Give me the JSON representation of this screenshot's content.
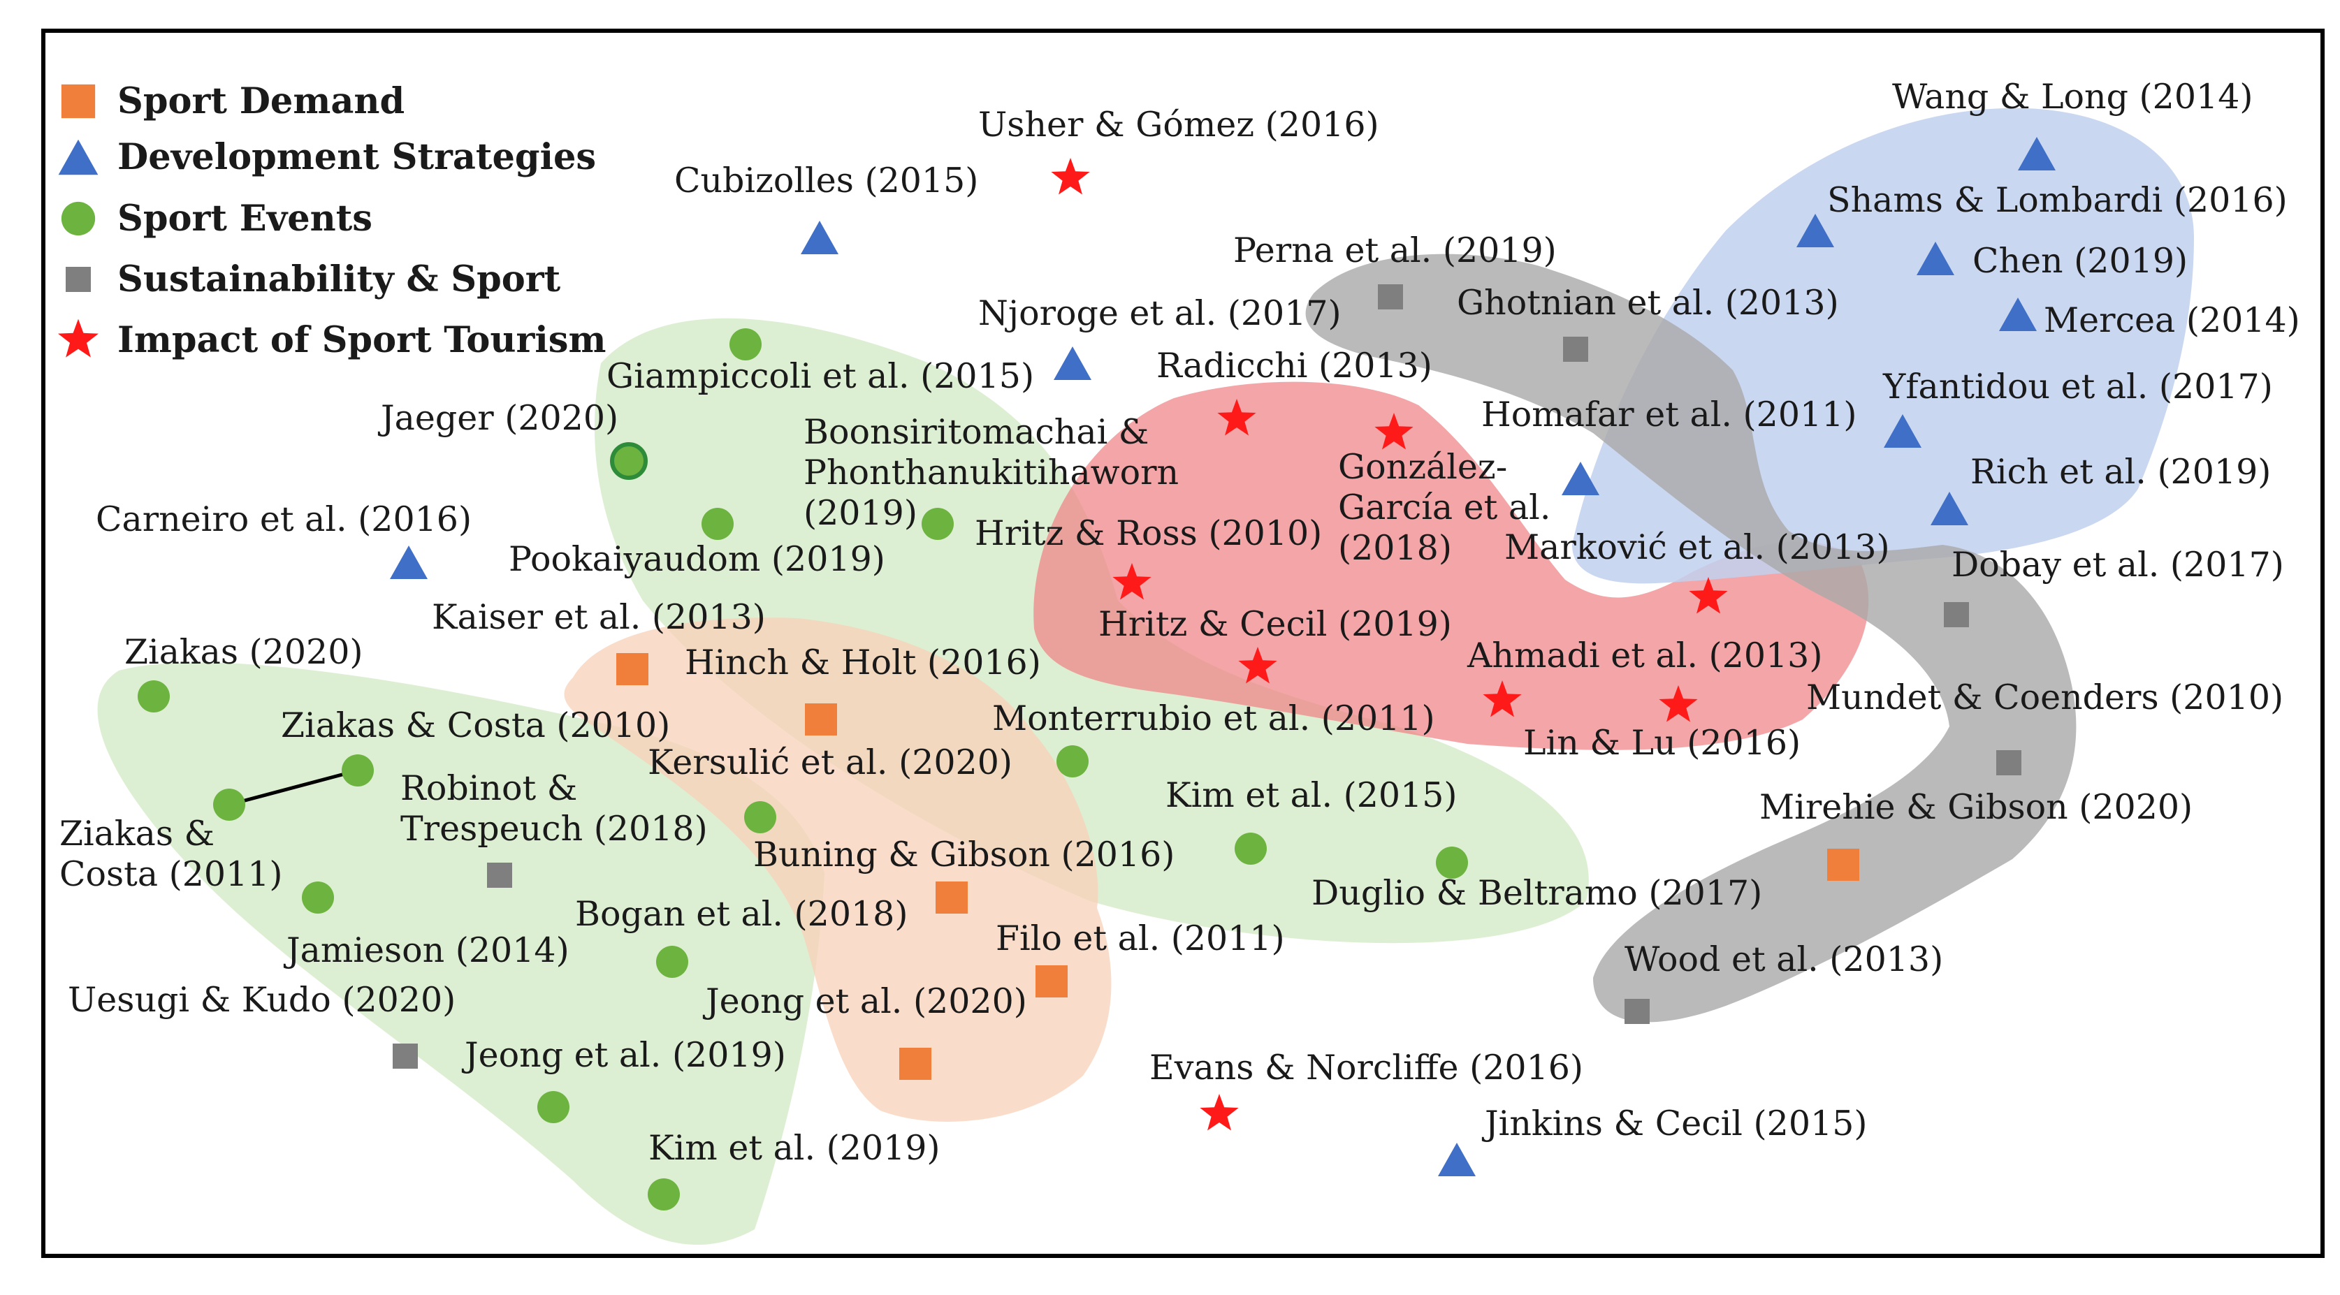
{
  "colors": {
    "sport_demand": "#F07F3C",
    "development_strategies": "#3F6FC6",
    "sport_events": "#6DB33F",
    "sustainability": "#7F7F7F",
    "impact": "#FF1A1A",
    "region_green": "#DDEFD2",
    "region_orange": "#FBE0CF",
    "region_red": "#F49A9C",
    "region_blue": "#C9D6EF",
    "region_gray": "#BFBFBF"
  },
  "legend": [
    {
      "key": "sport_demand",
      "icon": "square-icon",
      "label": "Sport Demand"
    },
    {
      "key": "development_strategies",
      "icon": "triangle-icon",
      "label": "Development Strategies"
    },
    {
      "key": "sport_events",
      "icon": "circle-icon",
      "label": "Sport Events"
    },
    {
      "key": "sustainability",
      "icon": "square-icon",
      "label": "Sustainability & Sport"
    },
    {
      "key": "impact",
      "icon": "star-icon",
      "label": "Impact of Sport Tourism"
    }
  ],
  "studies": [
    {
      "cat": "impact",
      "label": "Usher & Gómez (2016)"
    },
    {
      "cat": "development_strategies",
      "label": "Cubizolles (2015)"
    },
    {
      "cat": "development_strategies",
      "label": "Njoroge et al. (2017)"
    },
    {
      "cat": "sport_events",
      "label": "Giampiccoli et al. (2015)"
    },
    {
      "cat": "sport_events",
      "label": "Jaeger (2020)"
    },
    {
      "cat": "sport_events",
      "label": [
        "Boonsiritomachai &",
        "Phonthanukitihaworn",
        "(2019)"
      ]
    },
    {
      "cat": "sport_events",
      "label": "Pookaiyaudom (2019)"
    },
    {
      "cat": "development_strategies",
      "label": "Carneiro et al. (2016)"
    },
    {
      "cat": "sport_demand",
      "label": "Kaiser et al. (2013)"
    },
    {
      "cat": "sport_demand",
      "label": "Hinch & Holt (2016)"
    },
    {
      "cat": "sport_events",
      "label": "Ziakas (2020)"
    },
    {
      "cat": "sport_events",
      "label": "Ziakas & Costa (2010)"
    },
    {
      "cat": "sport_events",
      "label": [
        "Ziakas &",
        "Costa (2011)"
      ]
    },
    {
      "cat": "sustainability",
      "label": [
        "Robinot &",
        "Trespeuch (2018)"
      ]
    },
    {
      "cat": "sport_events",
      "label": "Kersulić et al. (2020)"
    },
    {
      "cat": "sport_events",
      "label": "Jamieson (2014)"
    },
    {
      "cat": "sport_events",
      "label": "Bogan et al. (2018)"
    },
    {
      "cat": "sport_demand",
      "label": "Buning & Gibson (2016)"
    },
    {
      "cat": "sustainability",
      "label": "Uesugi & Kudo (2020)"
    },
    {
      "cat": "sport_events",
      "label": "Jeong et al. (2019)"
    },
    {
      "cat": "sport_events",
      "label": "Kim et al. (2019)"
    },
    {
      "cat": "sport_demand",
      "label": "Jeong et al. (2020)"
    },
    {
      "cat": "sport_demand",
      "label": "Filo et al. (2011)"
    },
    {
      "cat": "sport_events",
      "label": "Monterrubio et al. (2011)"
    },
    {
      "cat": "sport_events",
      "label": "Kim et al. (2015)"
    },
    {
      "cat": "sport_events",
      "label": "Duglio & Beltramo (2017)"
    },
    {
      "cat": "impact",
      "label": "Radicchi (2013)"
    },
    {
      "cat": "impact",
      "label": [
        "González-",
        "García et al.",
        "(2018)"
      ]
    },
    {
      "cat": "impact",
      "label": "Hritz & Ross (2010)"
    },
    {
      "cat": "impact",
      "label": "Hritz & Cecil (2019)"
    },
    {
      "cat": "impact",
      "label": "Ahmadi et al. (2013)"
    },
    {
      "cat": "impact",
      "label": "Lin & Lu (2016)"
    },
    {
      "cat": "impact",
      "label": "Marković et al. (2013)"
    },
    {
      "cat": "impact",
      "label": "Evans & Norcliffe (2016)"
    },
    {
      "cat": "sustainability",
      "label": "Perna et al. (2019)"
    },
    {
      "cat": "sustainability",
      "label": "Ghotnian et al. (2013)"
    },
    {
      "cat": "development_strategies",
      "label": "Homafar et al. (2011)"
    },
    {
      "cat": "sustainability",
      "label": "Dobay et al. (2017)"
    },
    {
      "cat": "sustainability",
      "label": "Mundet & Coenders (2010)"
    },
    {
      "cat": "sport_demand",
      "label": "Mirehie & Gibson (2020)"
    },
    {
      "cat": "sustainability",
      "label": "Wood et al. (2013)"
    },
    {
      "cat": "development_strategies",
      "label": "Jinkins & Cecil (2015)"
    },
    {
      "cat": "development_strategies",
      "label": "Wang & Long (2014)"
    },
    {
      "cat": "development_strategies",
      "label": "Shams & Lombardi (2016)"
    },
    {
      "cat": "development_strategies",
      "label": "Chen (2019)"
    },
    {
      "cat": "development_strategies",
      "label": "Mercea (2014)"
    },
    {
      "cat": "development_strategies",
      "label": "Yfantidou et al. (2017)"
    },
    {
      "cat": "development_strategies",
      "label": "Rich et al. (2019)"
    }
  ]
}
